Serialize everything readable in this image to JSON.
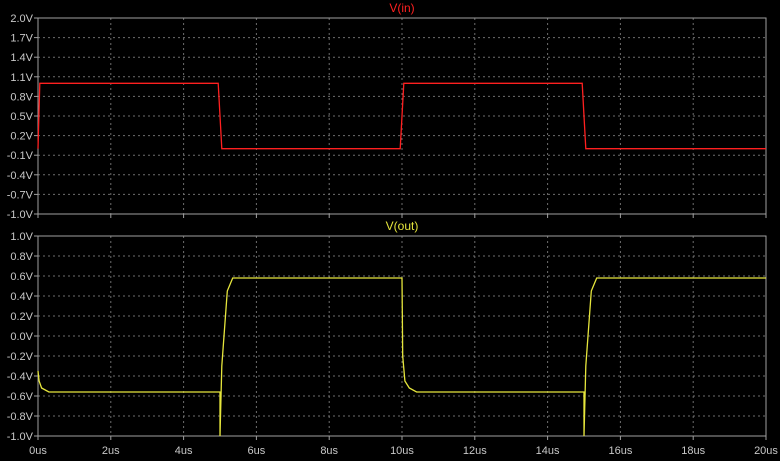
{
  "chart_data": [
    {
      "type": "line",
      "title": "V(in)",
      "xlabel": "",
      "ylabel": "",
      "xlim": [
        0,
        20
      ],
      "ylim": [
        -1.0,
        2.0
      ],
      "x_ticks": [
        "0us",
        "2us",
        "4us",
        "6us",
        "8us",
        "10us",
        "12us",
        "14us",
        "16us",
        "18us",
        "20us"
      ],
      "y_ticks": [
        "-1.0V",
        "-0.7V",
        "-0.4V",
        "-0.1V",
        "0.2V",
        "0.5V",
        "0.8V",
        "1.1V",
        "1.4V",
        "1.7V",
        "2.0V"
      ],
      "grid": true,
      "series": [
        {
          "name": "V(in)",
          "color": "#ff2020",
          "x": [
            0,
            0.05,
            4.95,
            5.05,
            9.95,
            10.05,
            14.95,
            15.05,
            20
          ],
          "y": [
            0,
            1.0,
            1.0,
            0,
            0,
            1.0,
            1.0,
            0,
            0
          ]
        }
      ]
    },
    {
      "type": "line",
      "title": "V(out)",
      "xlabel": "",
      "ylabel": "",
      "xlim": [
        0,
        20
      ],
      "ylim": [
        -1.0,
        1.0
      ],
      "x_ticks": [
        "0us",
        "2us",
        "4us",
        "6us",
        "8us",
        "10us",
        "12us",
        "14us",
        "16us",
        "18us",
        "20us"
      ],
      "y_ticks": [
        "-1.0V",
        "-0.8V",
        "-0.6V",
        "-0.4V",
        "-0.2V",
        "0.0V",
        "0.2V",
        "0.4V",
        "0.6V",
        "0.8V",
        "1.0V"
      ],
      "grid": true,
      "series": [
        {
          "name": "V(out)",
          "color": "#e6e63c",
          "x": [
            0,
            0.03,
            0.1,
            0.3,
            5.0,
            5.0,
            5.05,
            5.2,
            5.35,
            10.0,
            10.02,
            10.08,
            10.2,
            10.4,
            15.0,
            15.0,
            15.05,
            15.2,
            15.35,
            20
          ],
          "y": [
            -0.35,
            -0.45,
            -0.52,
            -0.56,
            -0.56,
            -1.0,
            -0.3,
            0.45,
            0.58,
            0.58,
            -0.2,
            -0.45,
            -0.52,
            -0.56,
            -0.56,
            -1.0,
            -0.3,
            0.45,
            0.58,
            0.58
          ]
        }
      ]
    }
  ]
}
